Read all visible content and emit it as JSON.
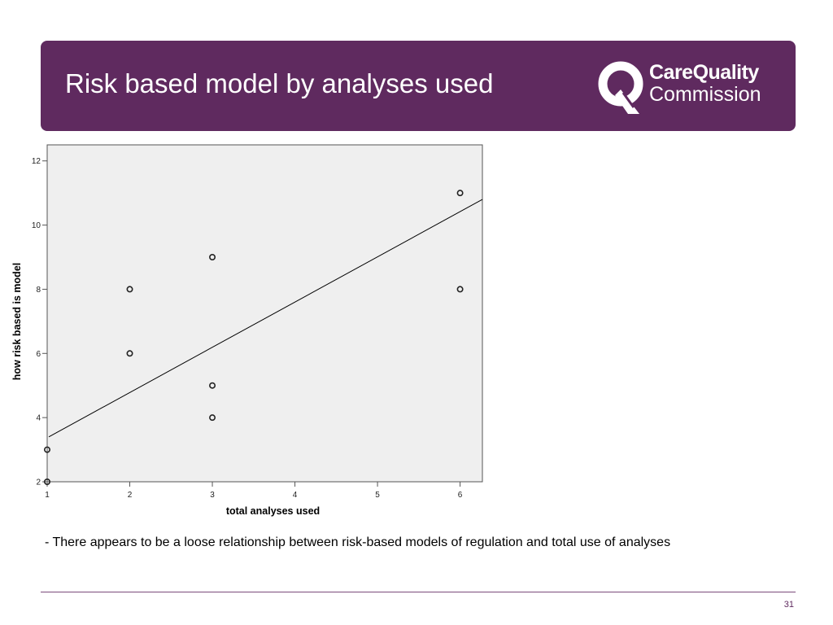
{
  "slide": {
    "title": "Risk based model by analyses used",
    "caption": "- There appears to be a loose relationship between risk-based models of regulation and total use of analyses",
    "page_number": "31"
  },
  "logo": {
    "line1": "CareQuality",
    "line2": "Commission",
    "icon": "cqc-q-logo-icon"
  },
  "colors": {
    "header_bg": "#5f2a5f",
    "plot_bg": "#efefef",
    "text_on_header": "#ffffff"
  },
  "chart_data": {
    "type": "scatter",
    "xlabel": "total analyses used",
    "ylabel": "how risk based is model",
    "x_ticks": [
      1,
      2,
      3,
      4,
      5,
      6
    ],
    "y_ticks": [
      2,
      4,
      6,
      8,
      10,
      12
    ],
    "xlim": [
      1,
      6.27
    ],
    "ylim": [
      2,
      12.5
    ],
    "points": [
      {
        "x": 1,
        "y": 2
      },
      {
        "x": 1,
        "y": 3
      },
      {
        "x": 2,
        "y": 6
      },
      {
        "x": 2,
        "y": 8
      },
      {
        "x": 3,
        "y": 4
      },
      {
        "x": 3,
        "y": 5
      },
      {
        "x": 3,
        "y": 9
      },
      {
        "x": 6,
        "y": 8
      },
      {
        "x": 6,
        "y": 11
      }
    ],
    "fit_line": {
      "x1": 1.02,
      "y1": 3.4,
      "x2": 6.27,
      "y2": 10.8
    },
    "grid": false
  }
}
